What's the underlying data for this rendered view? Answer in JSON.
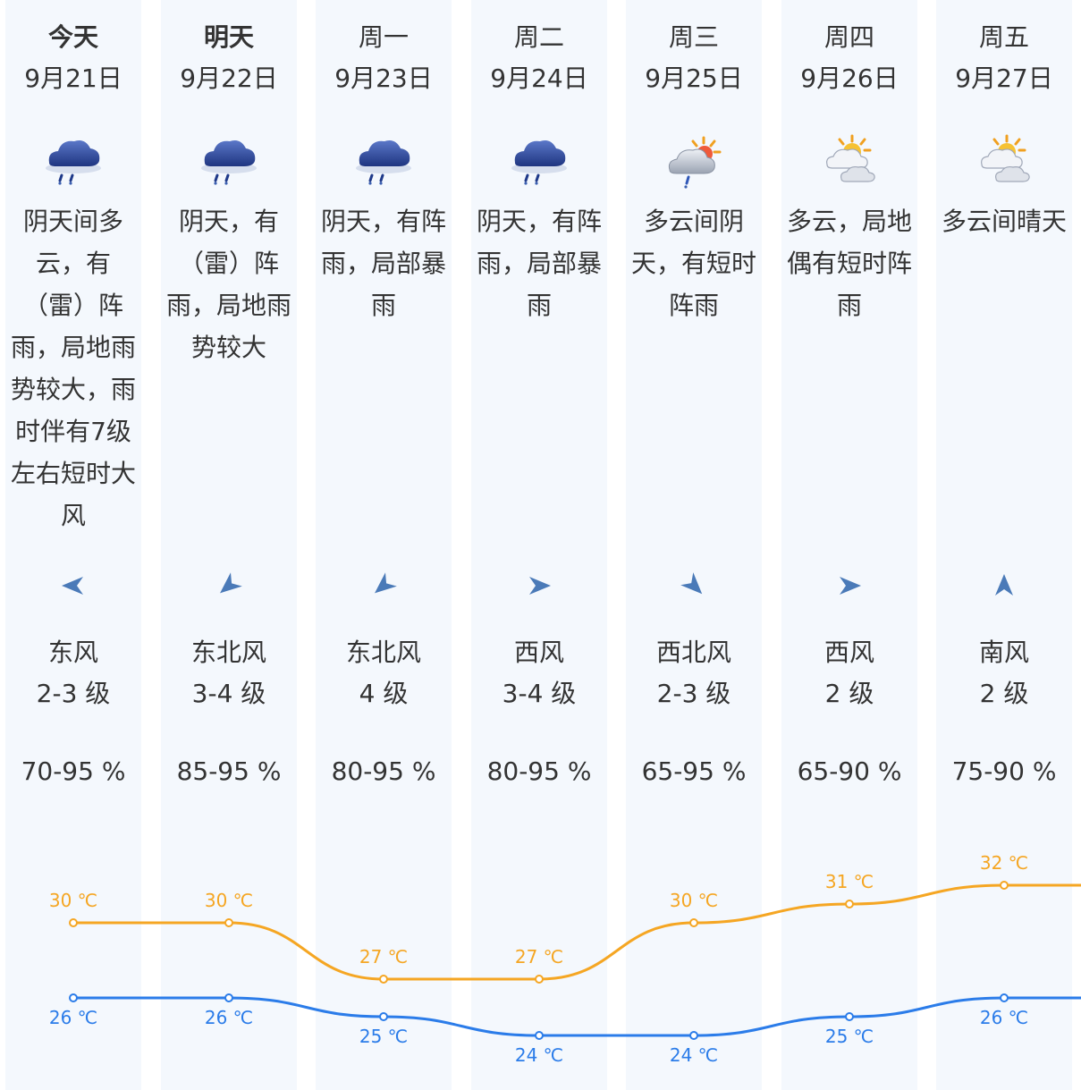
{
  "forecast": [
    {
      "day": "今天",
      "date": "9月21日",
      "icon": "thunder-rain-cloud-icon",
      "desc": "阴天间多云，有（雷）阵雨，局地雨势较大，雨时伴有7级左右短时大风",
      "wind_dir": "东风",
      "wind_level": "2-3 级",
      "humidity": "70-95 %",
      "arrow_icon": "wind-arrow-west-icon",
      "arrow_rot": 180,
      "high": "30 ℃",
      "low": "26 ℃",
      "bold": true
    },
    {
      "day": "明天",
      "date": "9月22日",
      "icon": "thunder-rain-cloud-icon",
      "desc": "阴天，有（雷）阵雨，局地雨势较大",
      "wind_dir": "东北风",
      "wind_level": "3-4 级",
      "humidity": "85-95 %",
      "arrow_icon": "wind-arrow-southwest-icon",
      "arrow_rot": 140,
      "high": "30 ℃",
      "low": "26 ℃",
      "bold": true
    },
    {
      "day": "周一",
      "date": "9月23日",
      "icon": "thunder-rain-cloud-icon",
      "desc": "阴天，有阵雨，局部暴雨",
      "wind_dir": "东北风",
      "wind_level": "4 级",
      "humidity": "80-95 %",
      "arrow_icon": "wind-arrow-southwest-icon",
      "arrow_rot": 140,
      "high": "27 ℃",
      "low": "25 ℃",
      "bold": false
    },
    {
      "day": "周二",
      "date": "9月24日",
      "icon": "thunder-rain-cloud-icon",
      "desc": "阴天，有阵雨，局部暴雨",
      "wind_dir": "西风",
      "wind_level": "3-4 级",
      "humidity": "80-95 %",
      "arrow_icon": "wind-arrow-east-icon",
      "arrow_rot": 0,
      "high": "27 ℃",
      "low": "24 ℃",
      "bold": false
    },
    {
      "day": "周三",
      "date": "9月25日",
      "icon": "sun-cloud-shower-icon",
      "desc": "多云间阴天，有短时阵雨",
      "wind_dir": "西北风",
      "wind_level": "2-3 级",
      "humidity": "65-95 %",
      "arrow_icon": "wind-arrow-southeast-icon",
      "arrow_rot": 45,
      "high": "30 ℃",
      "low": "24 ℃",
      "bold": false
    },
    {
      "day": "周四",
      "date": "9月26日",
      "icon": "partly-cloudy-icon",
      "desc": "多云，局地偶有短时阵雨",
      "wind_dir": "西风",
      "wind_level": "2 级",
      "humidity": "65-90 %",
      "arrow_icon": "wind-arrow-east-icon",
      "arrow_rot": 0,
      "high": "31 ℃",
      "low": "25 ℃",
      "bold": false
    },
    {
      "day": "周五",
      "date": "9月27日",
      "icon": "partly-cloudy-icon",
      "desc": "多云间晴天",
      "wind_dir": "南风",
      "wind_level": "2 级",
      "humidity": "75-90 %",
      "arrow_icon": "wind-arrow-north-icon",
      "arrow_rot": -90,
      "high": "32 ℃",
      "low": "26 ℃",
      "bold": false
    }
  ],
  "chart_data": {
    "type": "line",
    "categories": [
      "9月21日",
      "9月22日",
      "9月23日",
      "9月24日",
      "9月25日",
      "9月26日",
      "9月27日"
    ],
    "series": [
      {
        "values": [
          30,
          30,
          27,
          27,
          30,
          31,
          32
        ]
      },
      {
        "values": [
          26,
          26,
          25,
          24,
          24,
          25,
          26
        ]
      }
    ],
    "colors": {
      "high": "#f5a623",
      "low": "#2b7ce9"
    }
  }
}
